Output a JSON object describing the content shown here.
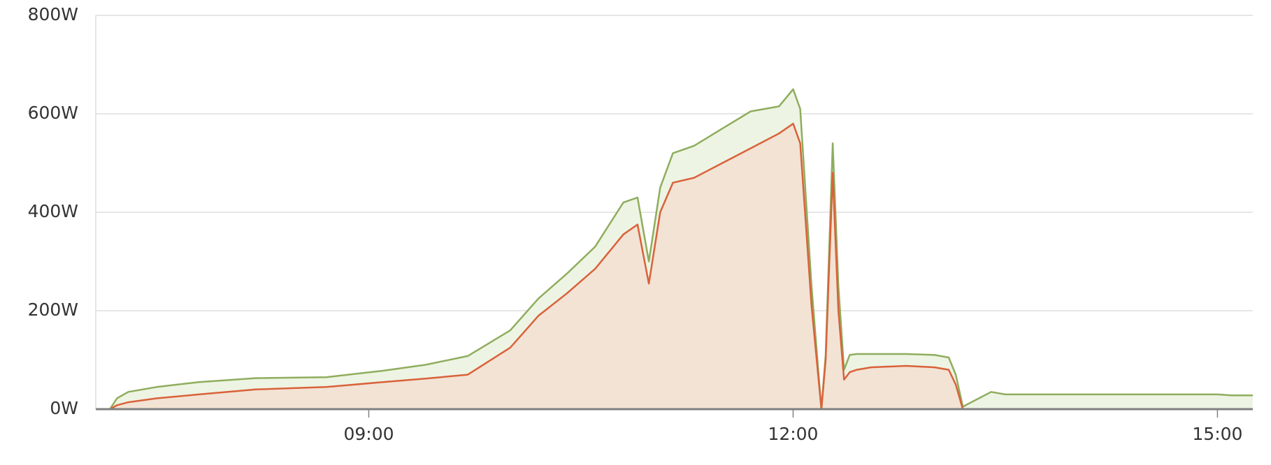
{
  "chart_data": {
    "type": "area",
    "x_unit": "hours",
    "xlim": [
      7.07,
      15.25
    ],
    "ylim": [
      0,
      800
    ],
    "y_ticks": [
      {
        "value": 0,
        "label": "0W"
      },
      {
        "value": 200,
        "label": "200W"
      },
      {
        "value": 400,
        "label": "400W"
      },
      {
        "value": 600,
        "label": "600W"
      },
      {
        "value": 800,
        "label": "800W"
      }
    ],
    "x_ticks": [
      {
        "value": 9,
        "label": "09:00"
      },
      {
        "value": 12,
        "label": "12:00"
      },
      {
        "value": 15,
        "label": "15:00"
      }
    ],
    "grid": true,
    "legend": "none",
    "colors": {
      "series_1_line": "#8fad5e",
      "series_1_fill": "#eef4e3",
      "series_2_line": "#d9623a",
      "series_2_fill": "#f2e3d4",
      "grid": "#dedede",
      "axis": "#808080",
      "tick_text": "#333333"
    },
    "series": [
      {
        "x": [
          7.17,
          7.22,
          7.3,
          7.5,
          7.8,
          8.2,
          8.7,
          9.1,
          9.4,
          9.7,
          10.0,
          10.2,
          10.4,
          10.6,
          10.8,
          10.9,
          10.98,
          11.06,
          11.15,
          11.3,
          11.5,
          11.7,
          11.9,
          12.0,
          12.05,
          12.13,
          12.2,
          12.23,
          12.28,
          12.32,
          12.36,
          12.4,
          12.45,
          12.55,
          12.8,
          13.0,
          13.1,
          13.15,
          13.2,
          13.3,
          13.4,
          13.5,
          14.0,
          14.5,
          15.0,
          15.1,
          15.25
        ],
        "values": [
          0,
          22,
          35,
          45,
          55,
          63,
          65,
          78,
          90,
          108,
          160,
          225,
          275,
          330,
          420,
          430,
          300,
          450,
          520,
          535,
          570,
          605,
          615,
          650,
          610,
          250,
          0,
          110,
          540,
          250,
          80,
          110,
          112,
          112,
          112,
          110,
          105,
          70,
          5,
          20,
          35,
          30,
          30,
          30,
          30,
          28,
          28
        ]
      },
      {
        "x": [
          7.17,
          7.22,
          7.3,
          7.5,
          7.8,
          8.2,
          8.7,
          9.1,
          9.4,
          9.7,
          10.0,
          10.2,
          10.4,
          10.6,
          10.8,
          10.9,
          10.98,
          11.06,
          11.15,
          11.3,
          11.5,
          11.7,
          11.9,
          12.0,
          12.05,
          12.13,
          12.2,
          12.23,
          12.28,
          12.32,
          12.36,
          12.4,
          12.45,
          12.55,
          12.8,
          13.0,
          13.1,
          13.15,
          13.2
        ],
        "values": [
          0,
          8,
          14,
          22,
          30,
          40,
          45,
          55,
          62,
          70,
          125,
          190,
          235,
          285,
          355,
          375,
          255,
          400,
          460,
          470,
          500,
          530,
          560,
          580,
          540,
          210,
          0,
          100,
          480,
          200,
          60,
          75,
          80,
          85,
          88,
          85,
          80,
          50,
          0
        ]
      }
    ]
  }
}
